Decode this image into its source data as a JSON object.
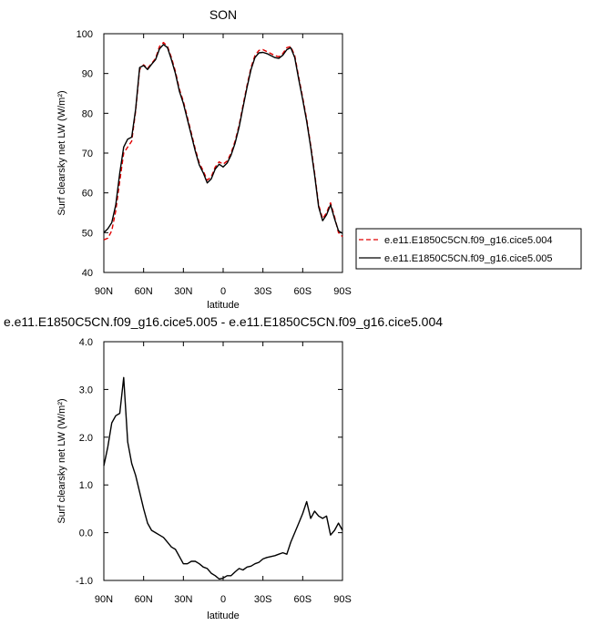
{
  "chart_data": [
    {
      "type": "line",
      "title": "SON",
      "xlabel": "latitude",
      "ylabel": "Surf clearsky net LW (W/m²)",
      "xlim": [
        -90,
        90
      ],
      "ylim": [
        40,
        100
      ],
      "x_ticks": [
        -90,
        -60,
        -30,
        0,
        30,
        60,
        90
      ],
      "x_tick_labels": [
        "90N",
        "60N",
        "30N",
        "0",
        "30S",
        "60S",
        "90S"
      ],
      "y_ticks": [
        40,
        50,
        60,
        70,
        80,
        90,
        100
      ],
      "y_tick_labels": [
        "40",
        "50",
        "60",
        "70",
        "80",
        "90",
        "100"
      ],
      "x": [
        -90,
        -87,
        -84,
        -81,
        -78,
        -75,
        -72,
        -69,
        -66,
        -63,
        -60,
        -57,
        -54,
        -51,
        -48,
        -45,
        -42,
        -39,
        -36,
        -33,
        -30,
        -27,
        -24,
        -21,
        -18,
        -15,
        -12,
        -9,
        -6,
        -3,
        0,
        3,
        6,
        9,
        12,
        15,
        18,
        21,
        24,
        27,
        30,
        33,
        36,
        39,
        42,
        45,
        48,
        51,
        54,
        57,
        60,
        63,
        66,
        69,
        72,
        75,
        78,
        81,
        84,
        87,
        90
      ],
      "series": [
        {
          "name": "e.e11.E1850C5CN.f09_g16.cice5.004",
          "color": "#e00000",
          "dash": "dashed",
          "values": [
            48.2,
            48.6,
            50.5,
            55.5,
            63,
            70,
            71.5,
            73,
            80.5,
            91,
            92.2,
            91.3,
            92.5,
            93.8,
            96.8,
            97.8,
            96.8,
            94,
            90.5,
            86,
            83,
            79,
            75,
            71,
            67.5,
            65.5,
            63.2,
            64,
            66.5,
            67.8,
            67.2,
            68,
            70,
            73,
            77,
            82,
            87,
            91.5,
            94.5,
            95.8,
            96,
            95.5,
            95,
            94.5,
            94.2,
            95,
            96.5,
            96.8,
            94.5,
            89,
            84,
            78.5,
            72,
            65,
            57,
            53.5,
            55,
            57.5,
            54,
            50,
            49
          ]
        },
        {
          "name": "e.e11.E1850C5CN.f09_g16.cice5.005",
          "color": "#000000",
          "dash": "solid",
          "values": [
            50,
            51,
            52.5,
            57,
            65,
            71.5,
            73.5,
            74,
            81,
            91.5,
            92,
            91,
            92.3,
            93.5,
            96.2,
            97.3,
            96.5,
            93.5,
            90,
            85.5,
            82.5,
            78.5,
            74.5,
            70.5,
            67,
            65,
            62.5,
            63.5,
            66,
            67.2,
            66.5,
            67.5,
            69.5,
            72.5,
            76.5,
            81.5,
            86.5,
            91,
            94,
            95.2,
            95.3,
            95,
            94.5,
            94,
            93.8,
            94.6,
            96,
            96.5,
            94,
            88.5,
            83.5,
            78,
            71.5,
            64.5,
            56.5,
            53,
            54.5,
            57,
            53.5,
            50.5,
            49.8
          ]
        }
      ]
    },
    {
      "type": "line",
      "title": "e.e11.E1850C5CN.f09_g16.cice5.005 - e.e11.E1850C5CN.f09_g16.cice5.004",
      "xlabel": "latitude",
      "ylabel": "Surf clearsky net LW (W/m²)",
      "xlim": [
        -90,
        90
      ],
      "ylim": [
        -1.0,
        4.0
      ],
      "x_ticks": [
        -90,
        -60,
        -30,
        0,
        30,
        60,
        90
      ],
      "x_tick_labels": [
        "90N",
        "60N",
        "30N",
        "0",
        "30S",
        "60S",
        "90S"
      ],
      "y_ticks": [
        -1,
        0,
        1,
        2,
        3,
        4
      ],
      "y_tick_labels": [
        "-1.0",
        "0.0",
        "1.0",
        "2.0",
        "3.0",
        "4.0"
      ],
      "x": [
        -90,
        -87,
        -84,
        -81,
        -78,
        -75,
        -72,
        -69,
        -66,
        -63,
        -60,
        -57,
        -54,
        -51,
        -48,
        -45,
        -42,
        -39,
        -36,
        -33,
        -30,
        -27,
        -24,
        -21,
        -18,
        -15,
        -12,
        -9,
        -6,
        -3,
        0,
        3,
        6,
        9,
        12,
        15,
        18,
        21,
        24,
        27,
        30,
        33,
        36,
        39,
        42,
        45,
        48,
        51,
        54,
        57,
        60,
        63,
        66,
        69,
        72,
        75,
        78,
        81,
        84,
        87,
        90
      ],
      "series": [
        {
          "color": "#000000",
          "dash": "solid",
          "values": [
            1.4,
            1.8,
            2.3,
            2.45,
            2.5,
            3.25,
            1.9,
            1.45,
            1.2,
            0.85,
            0.5,
            0.2,
            0.05,
            0.0,
            -0.05,
            -0.1,
            -0.2,
            -0.3,
            -0.35,
            -0.5,
            -0.65,
            -0.65,
            -0.6,
            -0.6,
            -0.65,
            -0.72,
            -0.75,
            -0.85,
            -0.9,
            -0.97,
            -0.95,
            -0.9,
            -0.9,
            -0.82,
            -0.75,
            -0.78,
            -0.72,
            -0.7,
            -0.65,
            -0.62,
            -0.55,
            -0.52,
            -0.5,
            -0.48,
            -0.45,
            -0.42,
            -0.45,
            -0.2,
            0.0,
            0.2,
            0.4,
            0.65,
            0.3,
            0.45,
            0.35,
            0.3,
            0.35,
            -0.05,
            0.05,
            0.2,
            0.05
          ]
        }
      ]
    }
  ]
}
